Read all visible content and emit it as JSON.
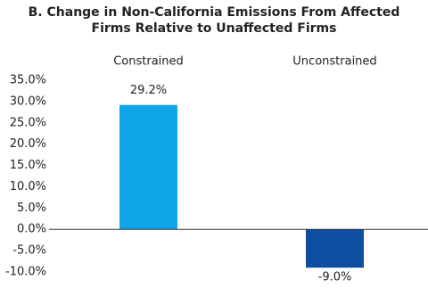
{
  "chart_data": {
    "type": "bar",
    "title": [
      "B. Change in Non-California Emissions From Affected",
      "Firms Relative to Unaffected Firms"
    ],
    "categories": [
      "Constrained",
      "Unconstrained"
    ],
    "values": [
      29.2,
      -9.0
    ],
    "value_labels": [
      "29.2%",
      "-9.0%"
    ],
    "colors": [
      "#0ea5e9",
      "#0b4ea2"
    ],
    "ylim": [
      -10,
      35
    ],
    "yticks": [
      {
        "value": -10,
        "label": "-10.0%"
      },
      {
        "value": -5,
        "label": "-5.0%"
      },
      {
        "value": 0,
        "label": "0.0%"
      },
      {
        "value": 5,
        "label": "5.0%"
      },
      {
        "value": 10,
        "label": "10.0%"
      },
      {
        "value": 15,
        "label": "15.0%"
      },
      {
        "value": 20,
        "label": "20.0%"
      },
      {
        "value": 25,
        "label": "25.0%"
      },
      {
        "value": 30,
        "label": "30.0%"
      },
      {
        "value": 35,
        "label": "35.0%"
      }
    ],
    "grid": false
  }
}
